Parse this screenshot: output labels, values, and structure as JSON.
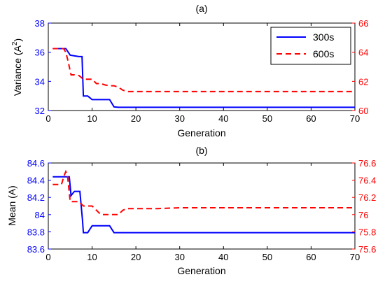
{
  "colors": {
    "left_axis": "#0000ff",
    "right_axis": "#ff0000",
    "axes": "#000000"
  },
  "chart_data": [
    {
      "type": "line",
      "title": "(a)",
      "xlabel": "Generation",
      "ylabel": "Variance (A",
      "ylabel_sup": "2",
      "ylabel_close": ")",
      "xlim": [
        0,
        70
      ],
      "ylim_left": [
        32,
        38
      ],
      "ylim_right": [
        60,
        66
      ],
      "x_ticks": [
        0,
        10,
        20,
        30,
        40,
        50,
        60,
        70
      ],
      "y_ticks_left": [
        32,
        34,
        36,
        38
      ],
      "y_ticks_right": [
        60,
        62,
        64,
        66
      ],
      "legend": {
        "placement": "top-right",
        "entries": [
          "300s",
          "600s"
        ]
      },
      "grid": false,
      "series": [
        {
          "name": "300s",
          "axis": "left",
          "color": "#0000ff",
          "dash": "solid",
          "x": [
            1,
            4,
            5,
            6,
            7,
            7.7,
            8,
            9,
            10,
            11,
            12,
            13,
            14,
            15,
            16,
            70
          ],
          "y": [
            36.25,
            36.25,
            35.8,
            35.75,
            35.7,
            35.7,
            33.0,
            33.0,
            32.75,
            32.75,
            32.75,
            32.75,
            32.75,
            32.25,
            32.22,
            32.22
          ]
        },
        {
          "name": "600s",
          "axis": "right",
          "color": "#ff0000",
          "dash": "dashed",
          "x": [
            1,
            3.5,
            4,
            4.5,
            5.2,
            6,
            7,
            8,
            9,
            10,
            11,
            12,
            13,
            14,
            15,
            16,
            17,
            18,
            70
          ],
          "y": [
            64.25,
            64.25,
            64.0,
            63.4,
            62.45,
            62.45,
            62.4,
            62.15,
            62.15,
            62.15,
            61.85,
            61.85,
            61.75,
            61.7,
            61.7,
            61.6,
            61.4,
            61.3,
            61.3
          ]
        }
      ]
    },
    {
      "type": "line",
      "title": "(b)",
      "xlabel": "Generation",
      "ylabel": "Mean (A)",
      "xlim": [
        0,
        70
      ],
      "ylim_left": [
        83.6,
        84.6
      ],
      "ylim_right": [
        75.6,
        76.6
      ],
      "x_ticks": [
        0,
        10,
        20,
        30,
        40,
        50,
        60,
        70
      ],
      "y_ticks_left": [
        "83.6",
        "83.8",
        "84",
        "84.2",
        "84.4",
        "84.6"
      ],
      "y_ticks_right": [
        "75.6",
        "75.8",
        "76",
        "76.2",
        "76.4",
        "76.6"
      ],
      "grid": false,
      "series": [
        {
          "name": "300s",
          "axis": "left",
          "color": "#0000ff",
          "dash": "solid",
          "x": [
            1,
            4.8,
            5.2,
            5.8,
            6,
            7.2,
            7.8,
            8,
            9,
            10,
            11,
            12,
            13,
            14,
            15,
            16,
            70
          ],
          "y": [
            84.44,
            84.44,
            84.22,
            84.26,
            84.27,
            84.27,
            83.94,
            83.79,
            83.79,
            83.87,
            83.87,
            83.87,
            83.87,
            83.87,
            83.79,
            83.79,
            83.79
          ]
        },
        {
          "name": "600s",
          "axis": "right",
          "color": "#ff0000",
          "dash": "dashed",
          "x": [
            1,
            3,
            3.6,
            4,
            4.4,
            5,
            6,
            7,
            8,
            10,
            11,
            12,
            13,
            14,
            15,
            16,
            17,
            18,
            25,
            30,
            40,
            50,
            60,
            70
          ],
          "y": [
            76.35,
            76.35,
            76.45,
            76.5,
            76.45,
            76.15,
            76.15,
            76.15,
            76.1,
            76.1,
            76.05,
            76.0,
            76.0,
            76.0,
            76.0,
            76.0,
            76.05,
            76.07,
            76.07,
            76.08,
            76.08,
            76.08,
            76.08,
            76.08
          ]
        }
      ]
    }
  ]
}
